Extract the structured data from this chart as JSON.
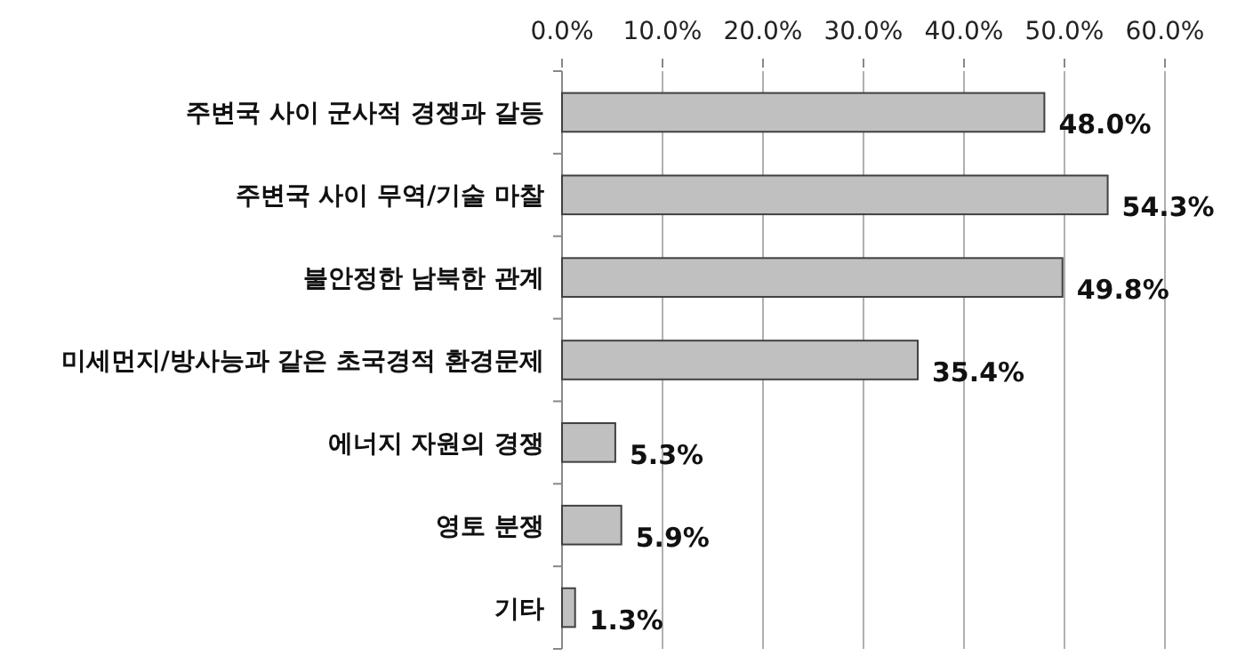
{
  "chart_data": {
    "type": "bar",
    "orientation": "horizontal",
    "categories": [
      "주변국 사이 군사적 경쟁과 갈등",
      "주변국 사이 무역/기술 마찰",
      "불안정한 남북한 관계",
      "미세먼지/방사능과 같은 초국경적 환경문제",
      "에너지 자원의 경쟁",
      "영토 분쟁",
      "기타"
    ],
    "values": [
      48.0,
      54.3,
      49.8,
      35.4,
      5.3,
      5.9,
      1.3
    ],
    "value_labels": [
      "48.0%",
      "54.3%",
      "49.8%",
      "35.4%",
      "5.3%",
      "5.9%",
      "1.3%"
    ],
    "color": "#c0c0c0",
    "xlim": [
      0,
      60
    ],
    "xticks": [
      {
        "value": 0,
        "label": "0.0%"
      },
      {
        "value": 10,
        "label": "10.0%"
      },
      {
        "value": 20,
        "label": "20.0%"
      },
      {
        "value": 30,
        "label": "30.0%"
      },
      {
        "value": 40,
        "label": "40.0%"
      },
      {
        "value": 50,
        "label": "50.0%"
      },
      {
        "value": 60,
        "label": "60.0%"
      }
    ],
    "grid": "x"
  }
}
